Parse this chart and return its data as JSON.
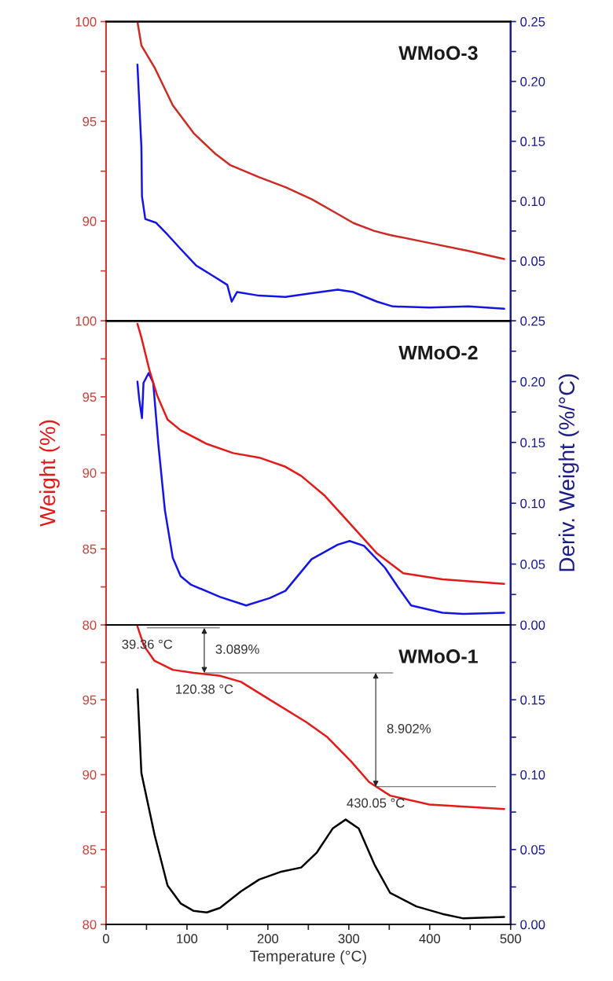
{
  "chart_data": [
    {
      "type": "line",
      "title": "WMoO-3",
      "xlim": [
        0,
        500
      ],
      "ylim": [
        85,
        100
      ],
      "y2lim": [
        0,
        0.25
      ],
      "tick_labels": "y",
      "yticks": [
        100,
        {
          "value": 97.5,
          "label": null
        },
        95,
        {
          "value": 92.5,
          "label": null
        },
        90,
        {
          "value": 87.5,
          "label": null
        }
      ],
      "y2ticks": [
        0.25,
        {
          "value": 0.225,
          "label": null
        },
        {
          "value": 0.2,
          "label": "0.20"
        },
        {
          "value": 0.175,
          "label": null
        },
        0.15,
        {
          "value": 0.125,
          "label": null
        },
        {
          "value": 0.1,
          "label": "0.10"
        },
        {
          "value": 0.075,
          "label": null
        },
        0.05,
        {
          "value": 0.025,
          "label": null
        }
      ],
      "series": [
        {
          "color": "#cc2a24",
          "x": [
            38.8,
            43.7,
            59.9,
            82.5,
            108.4,
            134.3,
            153.7,
            189,
            221.7,
            254,
            280,
            305.8,
            331.7,
            351,
            399.7,
            448,
            492
          ],
          "values": [
            100,
            98.8,
            97.7,
            95.8,
            94.4,
            93.4,
            92.8,
            92.2,
            91.7,
            91.1,
            90.5,
            89.9,
            89.5,
            89.3,
            88.9,
            88.5,
            88.1
          ]
        },
        {
          "color": "#1414e6",
          "axis": "y2",
          "x": [
            38.8,
            43.7,
            44.4,
            48.5,
            61.5,
            76,
            92.2,
            111.7,
            131,
            149.8,
            155.3,
            161.8,
            189.3,
            221.7,
            254,
            286.4,
            305.8,
            334.9,
            354.4,
            399.7,
            448,
            492
          ],
          "values": [
            0.214,
            0.145,
            0.104,
            0.085,
            0.082,
            0.072,
            0.06,
            0.046,
            0.038,
            0.03,
            0.016,
            0.024,
            0.021,
            0.02,
            0.023,
            0.026,
            0.024,
            0.016,
            0.012,
            0.011,
            0.012,
            0.01
          ]
        }
      ]
    },
    {
      "type": "line",
      "title": "WMoO-2",
      "xlim": [
        0,
        500
      ],
      "ylim": [
        80,
        100
      ],
      "y2lim": [
        0,
        0.25
      ],
      "tick_labels": "y",
      "ylabel": "Weight (%)",
      "y2label": "Deriv. Weight (%/°C)",
      "yticks": [
        100,
        {
          "value": 97.5,
          "label": null
        },
        95,
        {
          "value": 92.5,
          "label": null
        },
        90,
        {
          "value": 87.5,
          "label": null
        },
        85,
        {
          "value": 82.5,
          "label": null
        },
        80
      ],
      "y2ticks": [
        0.25,
        {
          "value": 0.225,
          "label": null
        },
        {
          "value": 0.2,
          "label": "0.20"
        },
        {
          "value": 0.175,
          "label": null
        },
        0.15,
        {
          "value": 0.125,
          "label": null
        },
        {
          "value": 0.1,
          "label": "0.10"
        },
        {
          "value": 0.075,
          "label": null
        },
        0.05,
        {
          "value": 0.025,
          "label": null
        },
        {
          "value": 0,
          "label": "0.00"
        }
      ],
      "series": [
        {
          "color": "#e31a1a",
          "x": [
            38.8,
            43.7,
            53.4,
            63.1,
            76,
            92.2,
            124.6,
            157,
            189.3,
            221.7,
            241.1,
            270.2,
            302.6,
            334.9,
            367.3,
            415.8,
            492
          ],
          "values": [
            99.8,
            98.9,
            96.8,
            95.1,
            93.5,
            92.8,
            91.9,
            91.3,
            91.0,
            90.4,
            89.8,
            88.5,
            86.6,
            84.7,
            83.4,
            83.0,
            82.7
          ]
        },
        {
          "color": "#1414e6",
          "axis": "y2",
          "x": [
            38.8,
            41.1,
            44.4,
            46.3,
            52.7,
            58.3,
            64.7,
            72.8,
            82.5,
            92.2,
            105.1,
            140.8,
            173.1,
            202.2,
            221.7,
            254,
            286.4,
            301,
            318.8,
            344.7,
            360.9,
            377,
            415.8,
            441.7,
            492
          ],
          "values": [
            0.2,
            0.185,
            0.17,
            0.199,
            0.207,
            0.199,
            0.148,
            0.094,
            0.055,
            0.04,
            0.033,
            0.023,
            0.016,
            0.022,
            0.028,
            0.054,
            0.066,
            0.069,
            0.065,
            0.047,
            0.031,
            0.016,
            0.01,
            0.009,
            0.01
          ]
        }
      ]
    },
    {
      "type": "line",
      "title": "WMoO-1",
      "xlim": [
        0,
        500
      ],
      "ylim": [
        80,
        100
      ],
      "y2lim": [
        0,
        0.2
      ],
      "xlabel": "Temperature (°C)",
      "xticks": [
        0,
        {
          "value": 50,
          "label": null
        },
        100,
        {
          "value": 150,
          "label": null
        },
        200,
        {
          "value": 250,
          "label": null
        },
        300,
        {
          "value": 350,
          "label": null
        },
        400,
        {
          "value": 450,
          "label": null
        },
        500
      ],
      "yticks": [
        {
          "value": 97.5,
          "label": null
        },
        95,
        {
          "value": 92.5,
          "label": null
        },
        90,
        {
          "value": 87.5,
          "label": null
        },
        85,
        {
          "value": 82.5,
          "label": null
        },
        80
      ],
      "y2ticks": [
        {
          "value": 0.175,
          "label": null
        },
        0.15,
        {
          "value": 0.125,
          "label": null
        },
        {
          "value": 0.1,
          "label": "0.10"
        },
        {
          "value": 0.075,
          "label": null
        },
        0.05,
        {
          "value": 0.025,
          "label": null
        },
        {
          "value": 0,
          "label": "0.00"
        }
      ],
      "series": [
        {
          "color": "#e31a1a",
          "x": [
            38.8,
            46.9,
            59.9,
            82.5,
            108.4,
            140.8,
            166.7,
            205.5,
            247.6,
            273.5,
            302.6,
            325.2,
            351.1,
            399.7,
            492
          ],
          "values": [
            99.9,
            98.6,
            97.6,
            97.0,
            96.8,
            96.6,
            96.2,
            94.9,
            93.5,
            92.5,
            90.9,
            89.5,
            88.6,
            88.0,
            87.7
          ]
        },
        {
          "color": "#000000",
          "axis": "y2",
          "x": [
            38.8,
            43.7,
            59.9,
            76,
            92.2,
            108.4,
            124.6,
            140.8,
            166.7,
            189.3,
            215.2,
            241.1,
            260.5,
            280,
            296.1,
            312.3,
            331.7,
            351.1,
            383.5,
            415.8,
            441.7,
            492
          ],
          "values": [
            0.157,
            0.101,
            0.06,
            0.026,
            0.014,
            0.009,
            0.008,
            0.011,
            0.022,
            0.03,
            0.035,
            0.038,
            0.048,
            0.064,
            0.07,
            0.064,
            0.04,
            0.021,
            0.012,
            0.007,
            0.004,
            0.005
          ]
        },
        {
          "type": "line",
          "color": "#555555",
          "x": [
            50.8,
            140.1
          ],
          "values": [
            99.8,
            99.8
          ]
        },
        {
          "type": "line",
          "color": "#555555",
          "x": [
            121.4,
            354.4
          ],
          "values": [
            96.8,
            96.8
          ]
        },
        {
          "type": "line",
          "color": "#555555",
          "x": [
            333.3,
            481.6
          ],
          "values": [
            89.2,
            89.2
          ]
        }
      ],
      "annotations": [
        {
          "text": "39.36 °C",
          "x": 50.8,
          "y": 99.8
        },
        "3.089%",
        {
          "text": "120.38 °C",
          "x": 121.4,
          "y": 96.8
        },
        "8.902%",
        {
          "text": "430.05 °C",
          "x": 333.3,
          "y": 89.2
        }
      ]
    }
  ]
}
